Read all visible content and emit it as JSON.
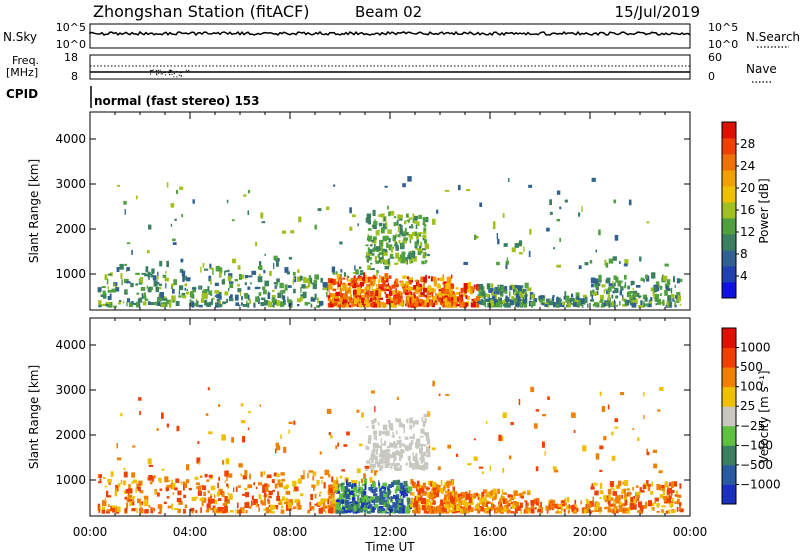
{
  "header": {
    "station": "Zhongshan Station (fitACF)",
    "beam": "Beam 02",
    "date": "15/Jul/2019"
  },
  "top_panels": {
    "nsky_label": "N.Sky",
    "nsky_ticks": [
      "10^5",
      "10^0"
    ],
    "nsearch_label": "N.Search",
    "nsearch_ticks": [
      "10^5",
      "10^0"
    ],
    "freq_label_1": "Freq.",
    "freq_label_2": "[MHz]",
    "freq_ticks": [
      "18",
      "8"
    ],
    "nave_label": "Nave",
    "nave_ticks": [
      "60",
      "0"
    ],
    "cpid_label": "CPID",
    "cpid_text": "normal (fast stereo) 153"
  },
  "chart_data": [
    {
      "type": "heatmap",
      "name": "power",
      "ylabel": "Slant Range [km]",
      "yticks": [
        1000,
        2000,
        3000,
        4000
      ],
      "ylim": [
        200,
        4600
      ],
      "xlim_hours": [
        0,
        24
      ],
      "colorbar": {
        "label": "Power [dB]",
        "ticks": [
          "4",
          "8",
          "12",
          "16",
          "20",
          "24",
          "28"
        ],
        "colors": [
          "#1010e0",
          "#2040b0",
          "#306090",
          "#3a8060",
          "#50a040",
          "#a0c020",
          "#f0c000",
          "#f0a000",
          "#f07000",
          "#f04000",
          "#e01000"
        ]
      }
    },
    {
      "type": "heatmap",
      "name": "velocity",
      "ylabel": "Slant Range [km]",
      "yticks": [
        1000,
        2000,
        3000,
        4000
      ],
      "ylim": [
        200,
        4600
      ],
      "xlim_hours": [
        0,
        24
      ],
      "xlabel": "Time UT",
      "xticks": [
        "00:00",
        "04:00",
        "08:00",
        "12:00",
        "16:00",
        "20:00",
        "00:00"
      ],
      "colorbar": {
        "label": "Velocity [m s⁻¹]",
        "ticks": [
          "1000",
          "500",
          "100",
          "25",
          "−25",
          "−100",
          "−500",
          "−1000"
        ],
        "colors": [
          "#1a30c0",
          "#2a5aa0",
          "#3a8060",
          "#60c040",
          "#c8c8c0",
          "#f0c000",
          "#f08000",
          "#f04000",
          "#e01000"
        ]
      }
    }
  ]
}
